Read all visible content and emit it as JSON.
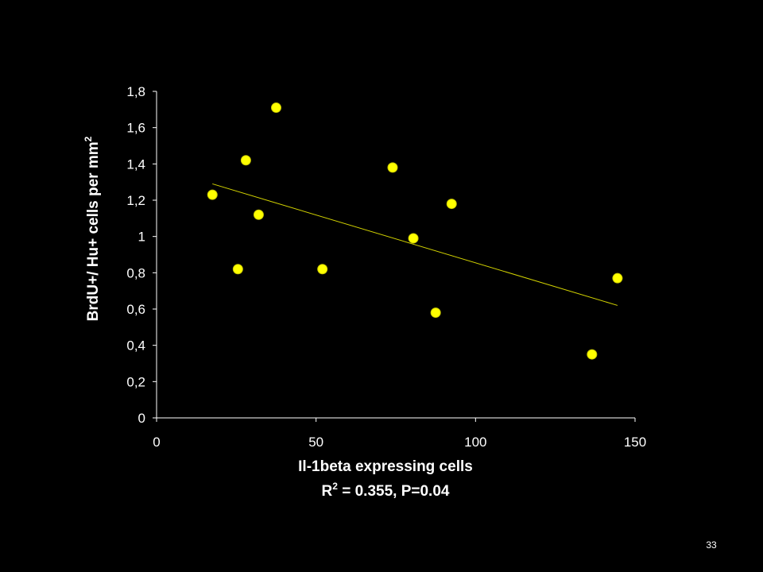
{
  "chart_data": {
    "type": "scatter",
    "xlabel": "Il-1beta expressing cells",
    "ylabel_main": "BrdU+/ Hu+ cells per mm",
    "ylabel_sup": "2",
    "xlim": [
      0,
      150
    ],
    "ylim": [
      0,
      1.8
    ],
    "xticks": [
      0,
      50,
      100,
      150
    ],
    "xtick_labels": [
      "0",
      "50",
      "100",
      "150"
    ],
    "yticks": [
      0,
      0.2,
      0.4,
      0.6,
      0.8,
      1,
      1.2,
      1.4,
      1.6,
      1.8
    ],
    "ytick_labels": [
      "0",
      "0,2",
      "0,4",
      "0,6",
      "0,8",
      "1",
      "1,2",
      "1,4",
      "1,6",
      "1,8"
    ],
    "grid": false,
    "points": [
      {
        "x": 17.5,
        "y": 1.23
      },
      {
        "x": 25.5,
        "y": 0.82
      },
      {
        "x": 28,
        "y": 1.42
      },
      {
        "x": 32,
        "y": 1.12
      },
      {
        "x": 37.5,
        "y": 1.71
      },
      {
        "x": 52,
        "y": 0.82
      },
      {
        "x": 74,
        "y": 1.38
      },
      {
        "x": 80.5,
        "y": 0.99
      },
      {
        "x": 87.5,
        "y": 0.58
      },
      {
        "x": 92.5,
        "y": 1.18
      },
      {
        "x": 136.5,
        "y": 0.35
      },
      {
        "x": 144.5,
        "y": 0.77
      }
    ],
    "trendline": {
      "x": [
        17.5,
        144.5
      ],
      "y": [
        1.29,
        0.62
      ]
    },
    "stats": {
      "r_label": "R",
      "r_sup": "2",
      "rest": " = 0.355, P=0.04"
    },
    "colors": {
      "point": "#ffff00",
      "point_stroke": "#c8c800",
      "trend": "#d4d400",
      "axis": "#ffffff",
      "background": "#000000"
    }
  },
  "slide": {
    "number": "33"
  }
}
